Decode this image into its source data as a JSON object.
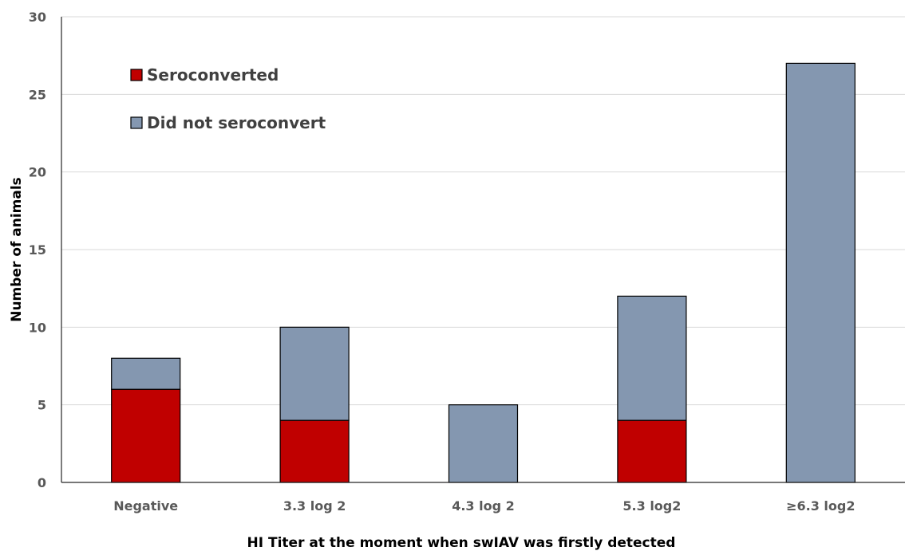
{
  "chart_data": {
    "type": "bar",
    "stacked": true,
    "categories": [
      "Negative",
      "3.3 log 2",
      "4.3 log 2",
      "5.3 log2",
      "≥6.3 log2"
    ],
    "series": [
      {
        "name": "Seroconverted",
        "color": "#c00000",
        "values": [
          6,
          4,
          0,
          4,
          0
        ]
      },
      {
        "name": "Did not seroconvert",
        "color": "#8497b0",
        "values": [
          2,
          6,
          5,
          8,
          27
        ]
      }
    ],
    "title": "",
    "xlabel": "HI Titer at the moment when swIAV was firstly detected",
    "ylabel": "Number of animals",
    "ylim": [
      0,
      30
    ],
    "yticks": [
      "0",
      "5",
      "10",
      "15",
      "20",
      "25",
      "30"
    ],
    "grid": true,
    "legend_position": "top-left"
  }
}
